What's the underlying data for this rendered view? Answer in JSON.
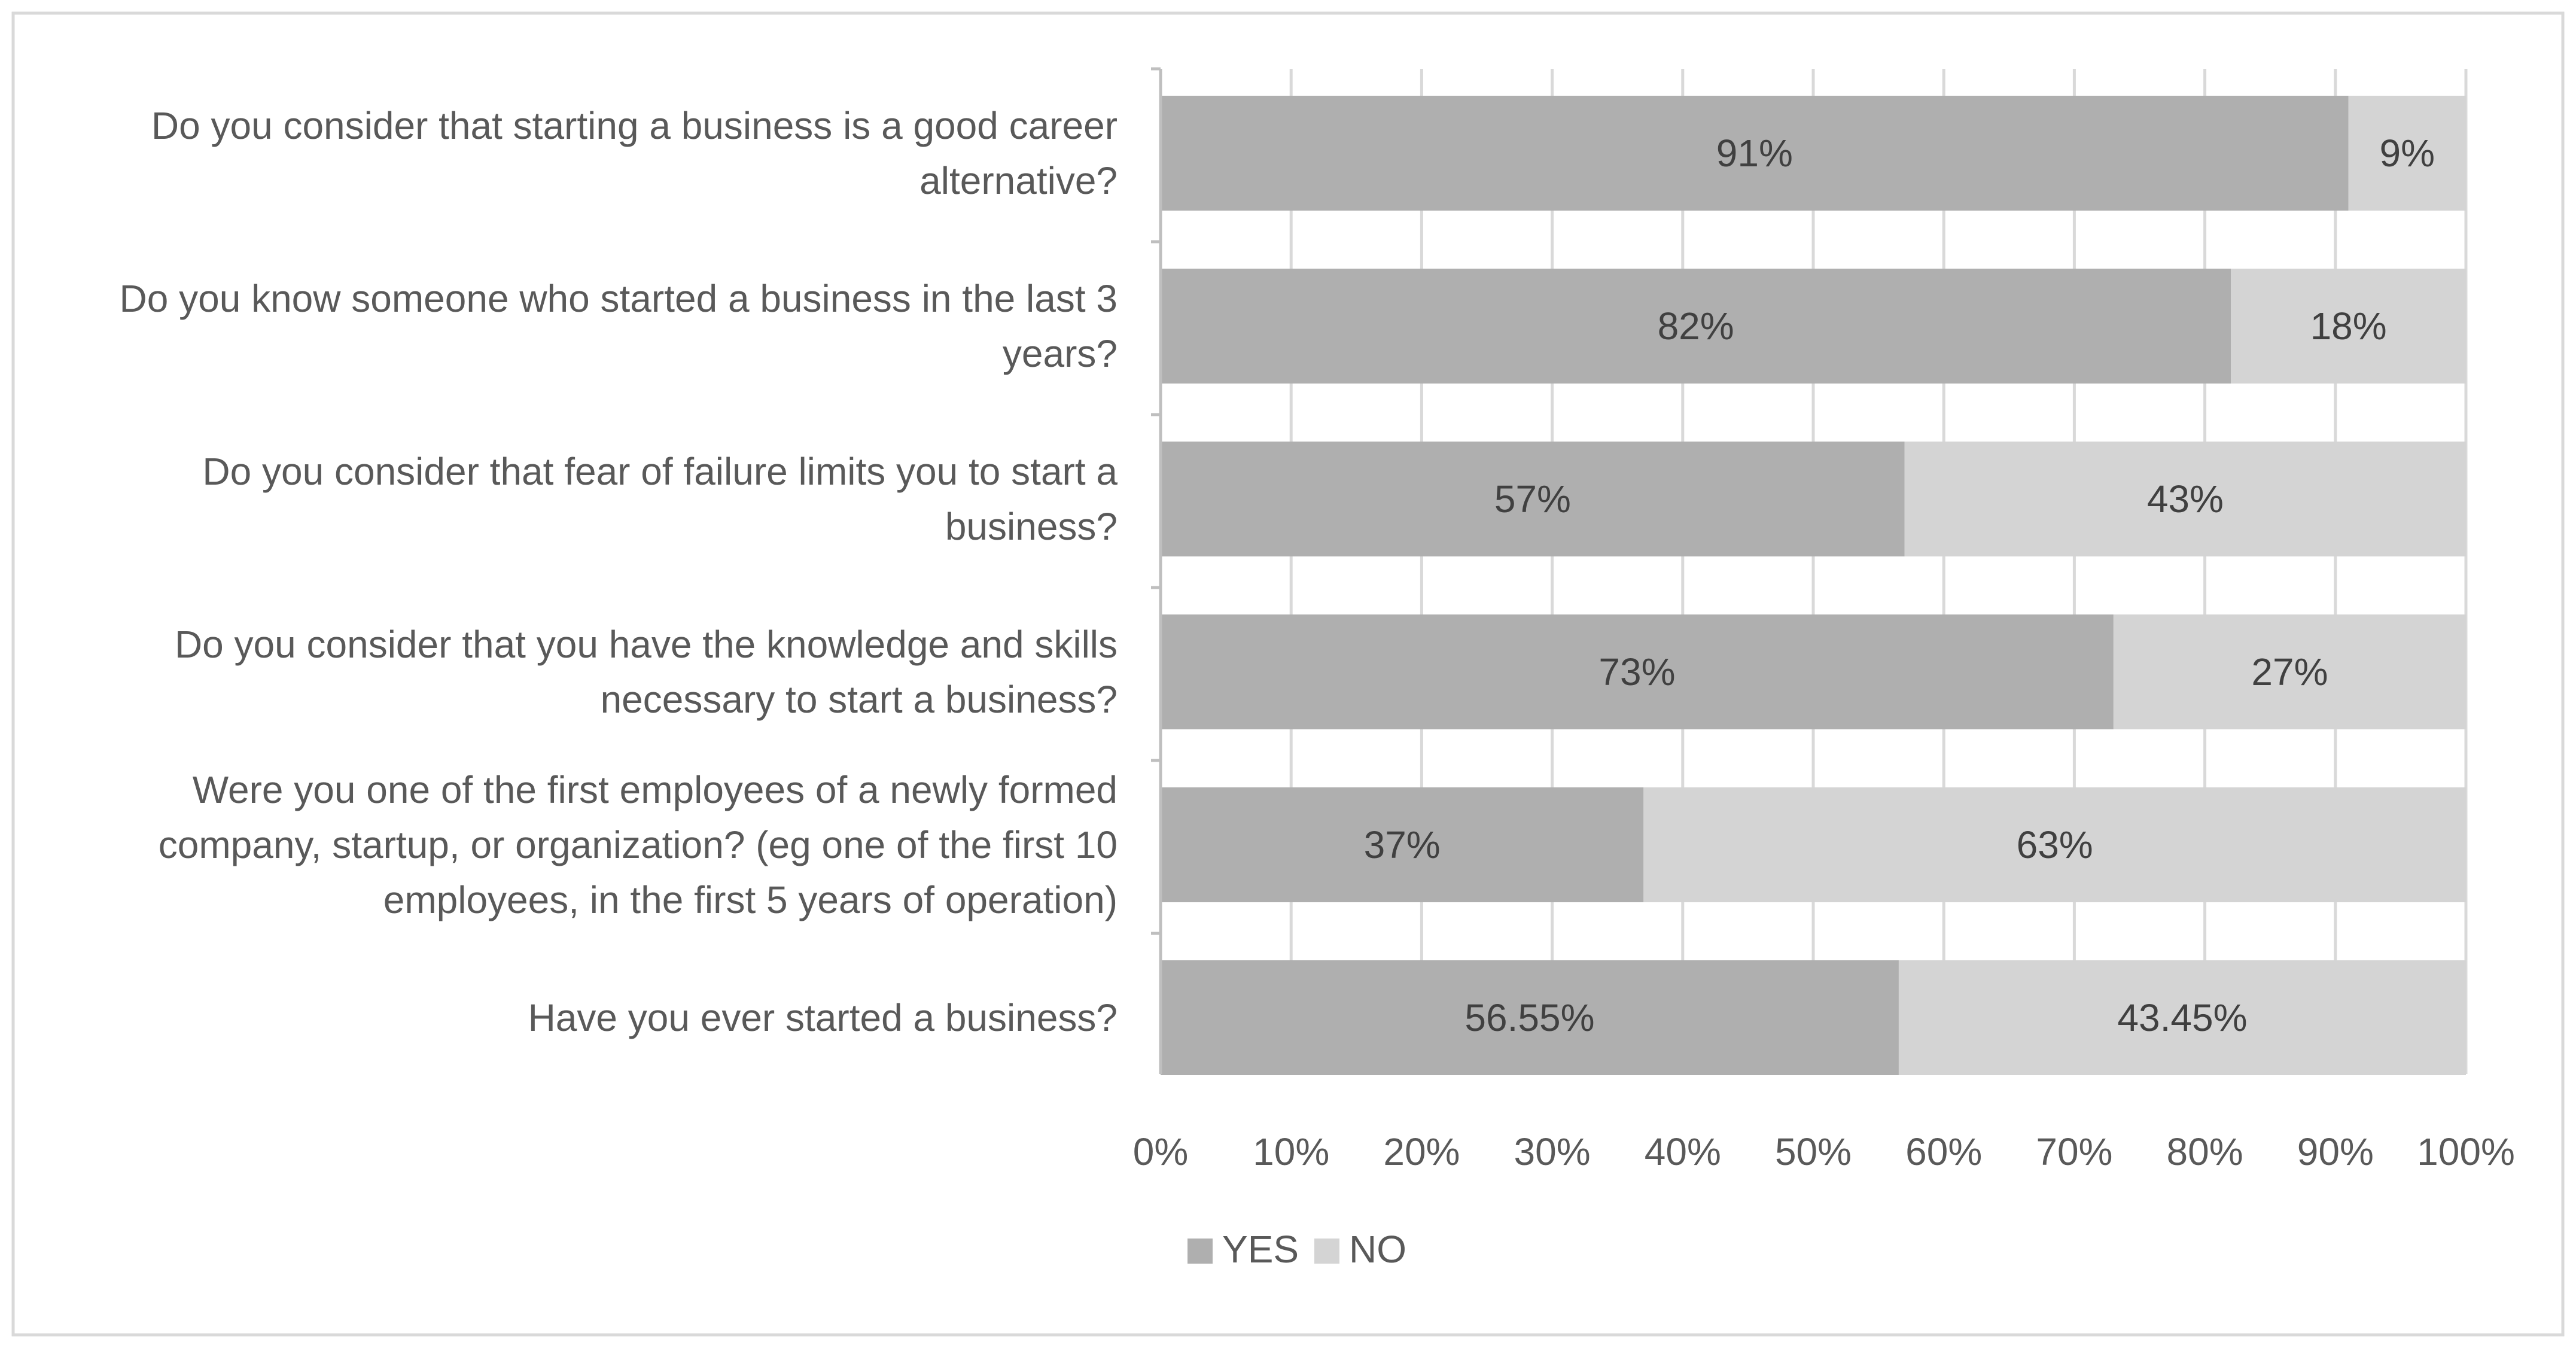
{
  "chart_data": {
    "type": "bar",
    "orientation": "horizontal",
    "stacked": true,
    "categories": [
      [
        "Do you consider that starting a business is a good career",
        "alternative?"
      ],
      [
        "Do you know someone who started a business in the last 3",
        "years?"
      ],
      [
        "Do you consider that fear of failure limits you to start a",
        "business?"
      ],
      [
        "Do you consider that you have the knowledge and skills",
        "necessary to start a business?"
      ],
      [
        "Were you one of the first employees of a newly formed",
        "company, startup, or organization? (eg one of the first 10",
        "employees, in the first 5 years of operation)"
      ],
      [
        "Have you ever started a business?"
      ]
    ],
    "series": [
      {
        "name": "YES",
        "color": "#afafaf",
        "values": [
          91,
          82,
          57,
          73,
          37,
          56.55
        ],
        "labels": [
          "91%",
          "82%",
          "57%",
          "73%",
          "37%",
          "56.55%"
        ]
      },
      {
        "name": "NO",
        "color": "#d4d4d4",
        "values": [
          9,
          18,
          43,
          27,
          63,
          43.45
        ],
        "labels": [
          "9%",
          "18%",
          "43%",
          "27%",
          "63%",
          "43.45%"
        ]
      }
    ],
    "xlim": [
      0,
      100
    ],
    "xticks": [
      0,
      10,
      20,
      30,
      40,
      50,
      60,
      70,
      80,
      90,
      100
    ],
    "xtick_labels": [
      "0%",
      "10%",
      "20%",
      "30%",
      "40%",
      "50%",
      "60%",
      "70%",
      "80%",
      "90%",
      "100%"
    ],
    "grid": true,
    "legend_position": "bottom",
    "title": "",
    "xlabel": "",
    "ylabel": ""
  }
}
